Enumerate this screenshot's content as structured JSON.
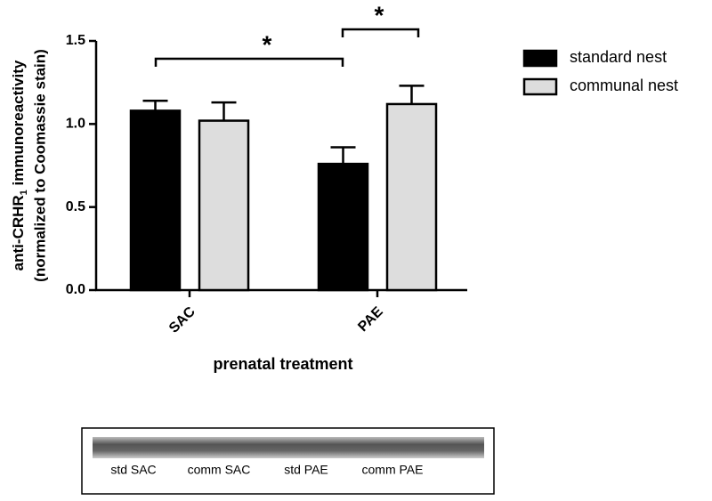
{
  "chart_data": {
    "type": "bar",
    "ylabel": {
      "prefix": "anti-CRHR",
      "subscript": "1",
      "suffix": "immunoreactivity",
      "line2": "(normalized to Coomassie stain)"
    },
    "xlabel": "prenatal treatment",
    "categories": [
      "SAC",
      "PAE"
    ],
    "series": [
      {
        "name": "standard nest",
        "color": "#000000",
        "values": [
          1.08,
          0.76
        ],
        "errors": [
          0.06,
          0.1
        ]
      },
      {
        "name": "communal nest",
        "color": "#dddddd",
        "values": [
          1.02,
          1.12
        ],
        "errors": [
          0.11,
          0.11
        ]
      }
    ],
    "ylim": [
      0,
      1.5
    ],
    "yticks": [
      {
        "value": 0,
        "label": "0.0"
      },
      {
        "value": 0.5,
        "label": "0.5"
      },
      {
        "value": 1.0,
        "label": "1.0"
      },
      {
        "value": 1.5,
        "label": "1.5"
      }
    ],
    "grid": false,
    "legend": "right",
    "annotations": [
      "*",
      "*"
    ]
  },
  "blot": {
    "lanes": [
      "std SAC",
      "comm SAC",
      "std PAE",
      "comm PAE"
    ]
  }
}
